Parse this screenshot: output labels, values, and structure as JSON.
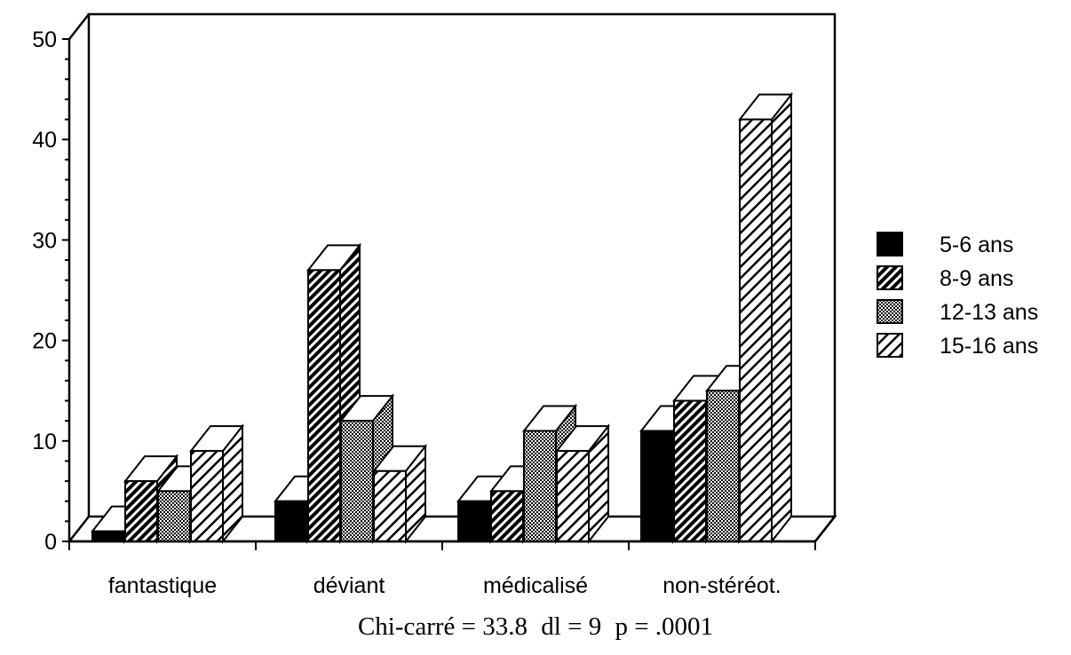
{
  "chart_data": {
    "type": "bar",
    "style": "3d-clustered",
    "categories": [
      "fantastique",
      "déviant",
      "médicalisé",
      "non-stéréot."
    ],
    "series": [
      {
        "name": "5-6 ans",
        "values": [
          1,
          4,
          4,
          11
        ],
        "pattern": "solid-black"
      },
      {
        "name": "8-9 ans",
        "values": [
          6,
          27,
          5,
          14
        ],
        "pattern": "dense-diagonal"
      },
      {
        "name": "12-13 ans",
        "values": [
          5,
          12,
          11,
          15
        ],
        "pattern": "crosshatch-dots"
      },
      {
        "name": "15-16 ans",
        "values": [
          9,
          7,
          9,
          42
        ],
        "pattern": "light-diagonal"
      }
    ],
    "y_ticks": [
      "0",
      "10",
      "20",
      "30",
      "40",
      "50"
    ],
    "ylim": [
      0,
      50
    ],
    "grid": false,
    "legend_position": "right",
    "xlabel": "",
    "ylabel": ""
  },
  "footnote": {
    "chi": "Chi-carré = 33.8",
    "dl": "dl = 9",
    "p": "p = .0001"
  }
}
